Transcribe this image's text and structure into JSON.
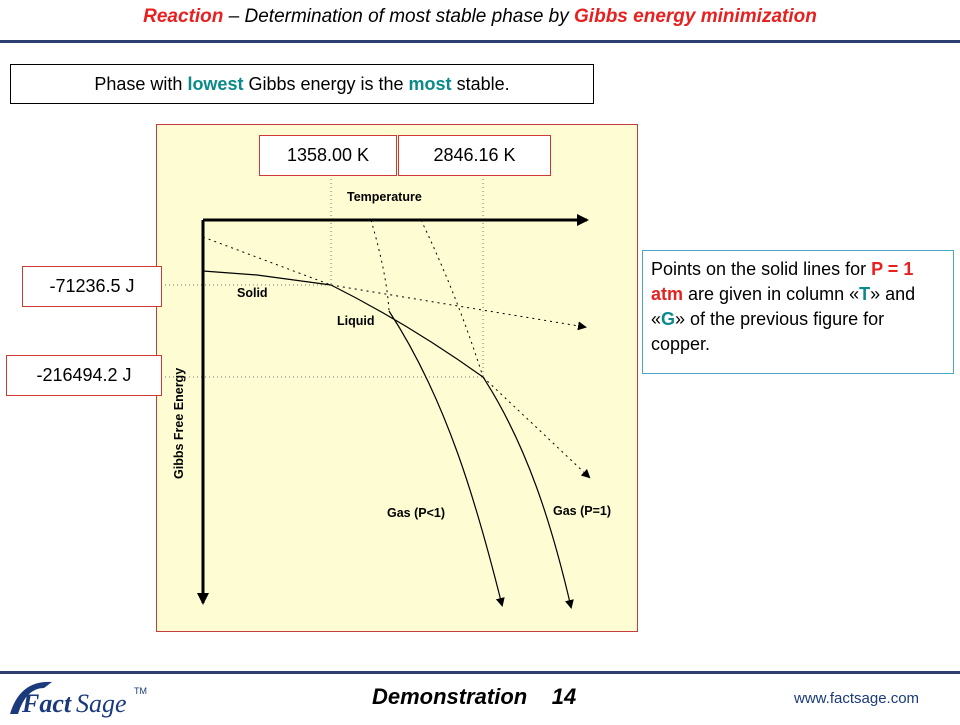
{
  "title": {
    "part1": "Reaction",
    "part2": " – Determination of most stable phase by ",
    "part3": "Gibbs energy minimization"
  },
  "stability_note": {
    "t1": "Phase with ",
    "t2": "lowest",
    "t3": " Gibbs energy is the ",
    "t4": "most",
    "t5": " stable."
  },
  "diagram": {
    "x_axis_label": "Temperature",
    "y_axis_label": "Gibbs Free Energy",
    "solid_label": "Solid",
    "liquid_label": "Liquid",
    "gas_p_lt1_label": "Gas (P<1)",
    "gas_p_eq1_label": "Gas (P=1)",
    "temp_1": "1358.00 K",
    "temp_2": "2846.16 K",
    "energy_1": "-71236.5 J",
    "energy_2": "-216494.2 J"
  },
  "side_note": {
    "s1": "Points on the solid lines for ",
    "s2": "P = 1 atm",
    "s3": " are given in column «",
    "s4": "T",
    "s5": "» and «",
    "s6": "G",
    "s7": "» of the previous figure for copper."
  },
  "footer": {
    "demo_label": "Demonstration",
    "page_number": "14",
    "url": "www.factsage.com",
    "logo_text_1": "Fact",
    "logo_text_2": "Sage",
    "logo_tm": "TM"
  },
  "colors": {
    "accent_red": "#e8201f",
    "accent_teal": "#0a8a8a",
    "rule_navy": "#2f3e70",
    "diagram_bg": "#fefcd2"
  }
}
